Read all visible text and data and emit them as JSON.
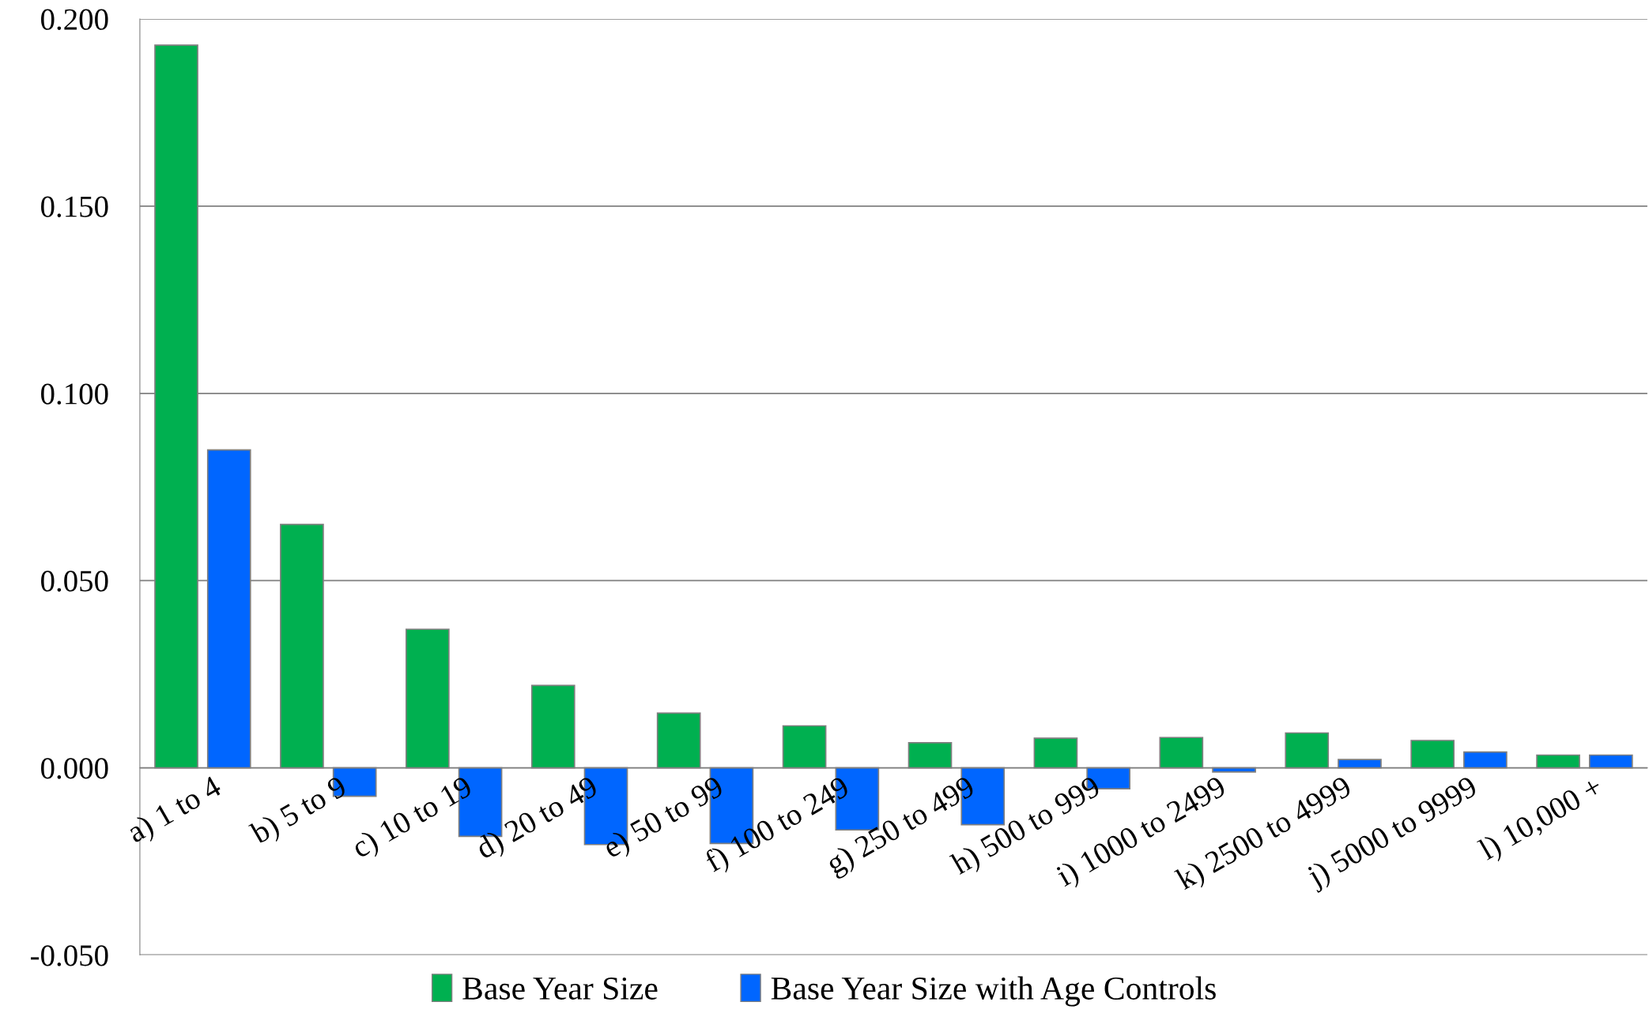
{
  "chart_data": {
    "type": "bar",
    "categories": [
      "a) 1 to 4",
      "b) 5 to 9",
      "c) 10 to 19",
      "d) 20 to 49",
      "e) 50 to 99",
      "f) 100 to 249",
      "g) 250 to 499",
      "h) 500 to 999",
      "i) 1000 to 2499",
      "k) 2500 to 4999",
      "j) 5000 to 9999",
      "l) 10,000 +"
    ],
    "series": [
      {
        "name": "Base Year Size",
        "color": "#00b050",
        "values": [
          0.193,
          0.065,
          0.037,
          0.022,
          0.0146,
          0.0112,
          0.0067,
          0.0079,
          0.0081,
          0.0093,
          0.0073,
          0.0034
        ]
      },
      {
        "name": "Base Year Size with Age Controls",
        "color": "#0066ff",
        "values": [
          0.0849,
          -0.0076,
          -0.0183,
          -0.0205,
          -0.0202,
          -0.0166,
          -0.0152,
          -0.0056,
          -0.0011,
          0.0022,
          0.0042,
          0.0034
        ]
      }
    ],
    "ylim": [
      -0.05,
      0.2
    ],
    "yticks": [
      {
        "value": -0.05,
        "label": "-0.050"
      },
      {
        "value": 0.0,
        "label": "0.000"
      },
      {
        "value": 0.05,
        "label": "0.050"
      },
      {
        "value": 0.1,
        "label": "0.100"
      },
      {
        "value": 0.15,
        "label": "0.150"
      },
      {
        "value": 0.2,
        "label": "0.200"
      }
    ],
    "grid": "y",
    "legend": "bottom"
  }
}
